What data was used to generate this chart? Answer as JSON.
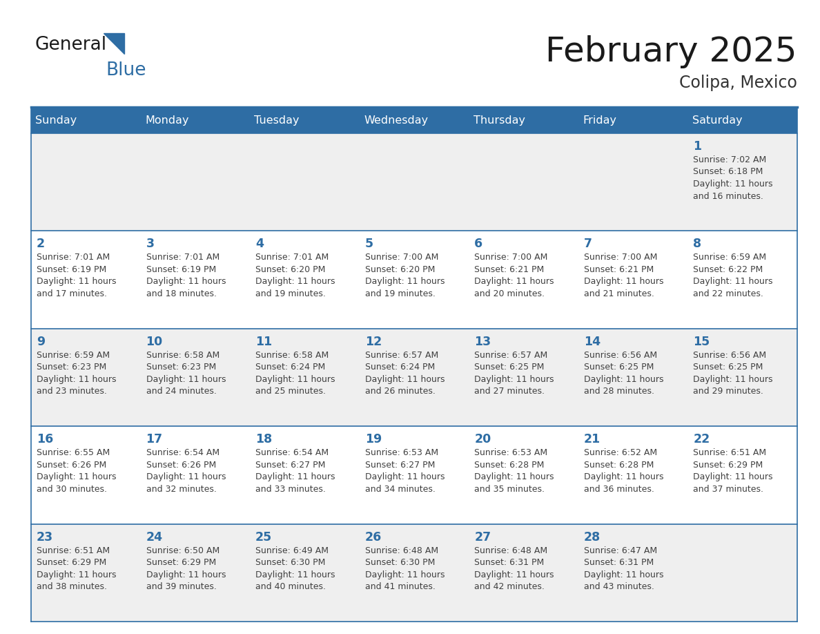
{
  "title": "February 2025",
  "subtitle": "Colipa, Mexico",
  "days_of_week": [
    "Sunday",
    "Monday",
    "Tuesday",
    "Wednesday",
    "Thursday",
    "Friday",
    "Saturday"
  ],
  "header_bg": "#2E6DA4",
  "header_text_color": "#FFFFFF",
  "cell_bg_odd": "#EFEFEF",
  "cell_bg_even": "#FFFFFF",
  "border_color": "#2E6DA4",
  "day_number_color": "#2E6DA4",
  "cell_text_color": "#404040",
  "title_color": "#1a1a1a",
  "subtitle_color": "#333333",
  "logo_general_color": "#1a1a1a",
  "logo_blue_color": "#2E6DA4",
  "calendar": [
    [
      null,
      null,
      null,
      null,
      null,
      null,
      {
        "day": 1,
        "lines": [
          "Sunrise: 7:02 AM",
          "Sunset: 6:18 PM",
          "Daylight: 11 hours",
          "and 16 minutes."
        ]
      }
    ],
    [
      {
        "day": 2,
        "lines": [
          "Sunrise: 7:01 AM",
          "Sunset: 6:19 PM",
          "Daylight: 11 hours",
          "and 17 minutes."
        ]
      },
      {
        "day": 3,
        "lines": [
          "Sunrise: 7:01 AM",
          "Sunset: 6:19 PM",
          "Daylight: 11 hours",
          "and 18 minutes."
        ]
      },
      {
        "day": 4,
        "lines": [
          "Sunrise: 7:01 AM",
          "Sunset: 6:20 PM",
          "Daylight: 11 hours",
          "and 19 minutes."
        ]
      },
      {
        "day": 5,
        "lines": [
          "Sunrise: 7:00 AM",
          "Sunset: 6:20 PM",
          "Daylight: 11 hours",
          "and 19 minutes."
        ]
      },
      {
        "day": 6,
        "lines": [
          "Sunrise: 7:00 AM",
          "Sunset: 6:21 PM",
          "Daylight: 11 hours",
          "and 20 minutes."
        ]
      },
      {
        "day": 7,
        "lines": [
          "Sunrise: 7:00 AM",
          "Sunset: 6:21 PM",
          "Daylight: 11 hours",
          "and 21 minutes."
        ]
      },
      {
        "day": 8,
        "lines": [
          "Sunrise: 6:59 AM",
          "Sunset: 6:22 PM",
          "Daylight: 11 hours",
          "and 22 minutes."
        ]
      }
    ],
    [
      {
        "day": 9,
        "lines": [
          "Sunrise: 6:59 AM",
          "Sunset: 6:23 PM",
          "Daylight: 11 hours",
          "and 23 minutes."
        ]
      },
      {
        "day": 10,
        "lines": [
          "Sunrise: 6:58 AM",
          "Sunset: 6:23 PM",
          "Daylight: 11 hours",
          "and 24 minutes."
        ]
      },
      {
        "day": 11,
        "lines": [
          "Sunrise: 6:58 AM",
          "Sunset: 6:24 PM",
          "Daylight: 11 hours",
          "and 25 minutes."
        ]
      },
      {
        "day": 12,
        "lines": [
          "Sunrise: 6:57 AM",
          "Sunset: 6:24 PM",
          "Daylight: 11 hours",
          "and 26 minutes."
        ]
      },
      {
        "day": 13,
        "lines": [
          "Sunrise: 6:57 AM",
          "Sunset: 6:25 PM",
          "Daylight: 11 hours",
          "and 27 minutes."
        ]
      },
      {
        "day": 14,
        "lines": [
          "Sunrise: 6:56 AM",
          "Sunset: 6:25 PM",
          "Daylight: 11 hours",
          "and 28 minutes."
        ]
      },
      {
        "day": 15,
        "lines": [
          "Sunrise: 6:56 AM",
          "Sunset: 6:25 PM",
          "Daylight: 11 hours",
          "and 29 minutes."
        ]
      }
    ],
    [
      {
        "day": 16,
        "lines": [
          "Sunrise: 6:55 AM",
          "Sunset: 6:26 PM",
          "Daylight: 11 hours",
          "and 30 minutes."
        ]
      },
      {
        "day": 17,
        "lines": [
          "Sunrise: 6:54 AM",
          "Sunset: 6:26 PM",
          "Daylight: 11 hours",
          "and 32 minutes."
        ]
      },
      {
        "day": 18,
        "lines": [
          "Sunrise: 6:54 AM",
          "Sunset: 6:27 PM",
          "Daylight: 11 hours",
          "and 33 minutes."
        ]
      },
      {
        "day": 19,
        "lines": [
          "Sunrise: 6:53 AM",
          "Sunset: 6:27 PM",
          "Daylight: 11 hours",
          "and 34 minutes."
        ]
      },
      {
        "day": 20,
        "lines": [
          "Sunrise: 6:53 AM",
          "Sunset: 6:28 PM",
          "Daylight: 11 hours",
          "and 35 minutes."
        ]
      },
      {
        "day": 21,
        "lines": [
          "Sunrise: 6:52 AM",
          "Sunset: 6:28 PM",
          "Daylight: 11 hours",
          "and 36 minutes."
        ]
      },
      {
        "day": 22,
        "lines": [
          "Sunrise: 6:51 AM",
          "Sunset: 6:29 PM",
          "Daylight: 11 hours",
          "and 37 minutes."
        ]
      }
    ],
    [
      {
        "day": 23,
        "lines": [
          "Sunrise: 6:51 AM",
          "Sunset: 6:29 PM",
          "Daylight: 11 hours",
          "and 38 minutes."
        ]
      },
      {
        "day": 24,
        "lines": [
          "Sunrise: 6:50 AM",
          "Sunset: 6:29 PM",
          "Daylight: 11 hours",
          "and 39 minutes."
        ]
      },
      {
        "day": 25,
        "lines": [
          "Sunrise: 6:49 AM",
          "Sunset: 6:30 PM",
          "Daylight: 11 hours",
          "and 40 minutes."
        ]
      },
      {
        "day": 26,
        "lines": [
          "Sunrise: 6:48 AM",
          "Sunset: 6:30 PM",
          "Daylight: 11 hours",
          "and 41 minutes."
        ]
      },
      {
        "day": 27,
        "lines": [
          "Sunrise: 6:48 AM",
          "Sunset: 6:31 PM",
          "Daylight: 11 hours",
          "and 42 minutes."
        ]
      },
      {
        "day": 28,
        "lines": [
          "Sunrise: 6:47 AM",
          "Sunset: 6:31 PM",
          "Daylight: 11 hours",
          "and 43 minutes."
        ]
      },
      null
    ]
  ]
}
